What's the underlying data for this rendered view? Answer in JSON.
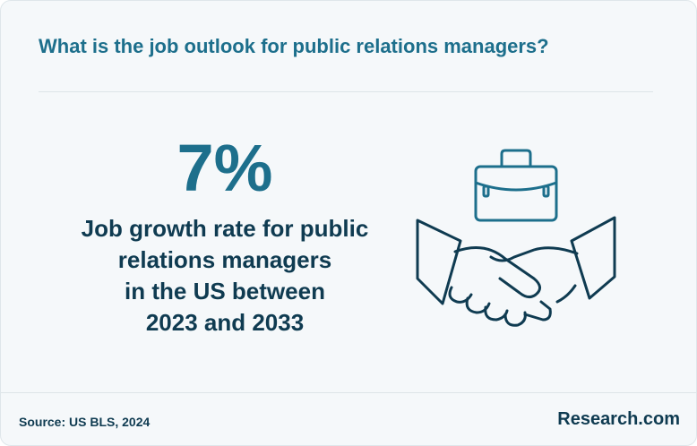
{
  "header": {
    "title": "What is the job outlook for public relations managers?"
  },
  "stat": {
    "value": "7%",
    "description_lines": [
      "Job growth rate for public",
      "relations managers",
      "in the US between",
      "2023 and 2033"
    ]
  },
  "illustration": {
    "icons": [
      "briefcase-icon",
      "handshake-icon"
    ]
  },
  "footer": {
    "source": "Source: US BLS, 2024",
    "brand": "Research.com"
  },
  "colors": {
    "accent": "#1d6f8c",
    "dark": "#0f3b51",
    "background": "#f5f8fa"
  }
}
